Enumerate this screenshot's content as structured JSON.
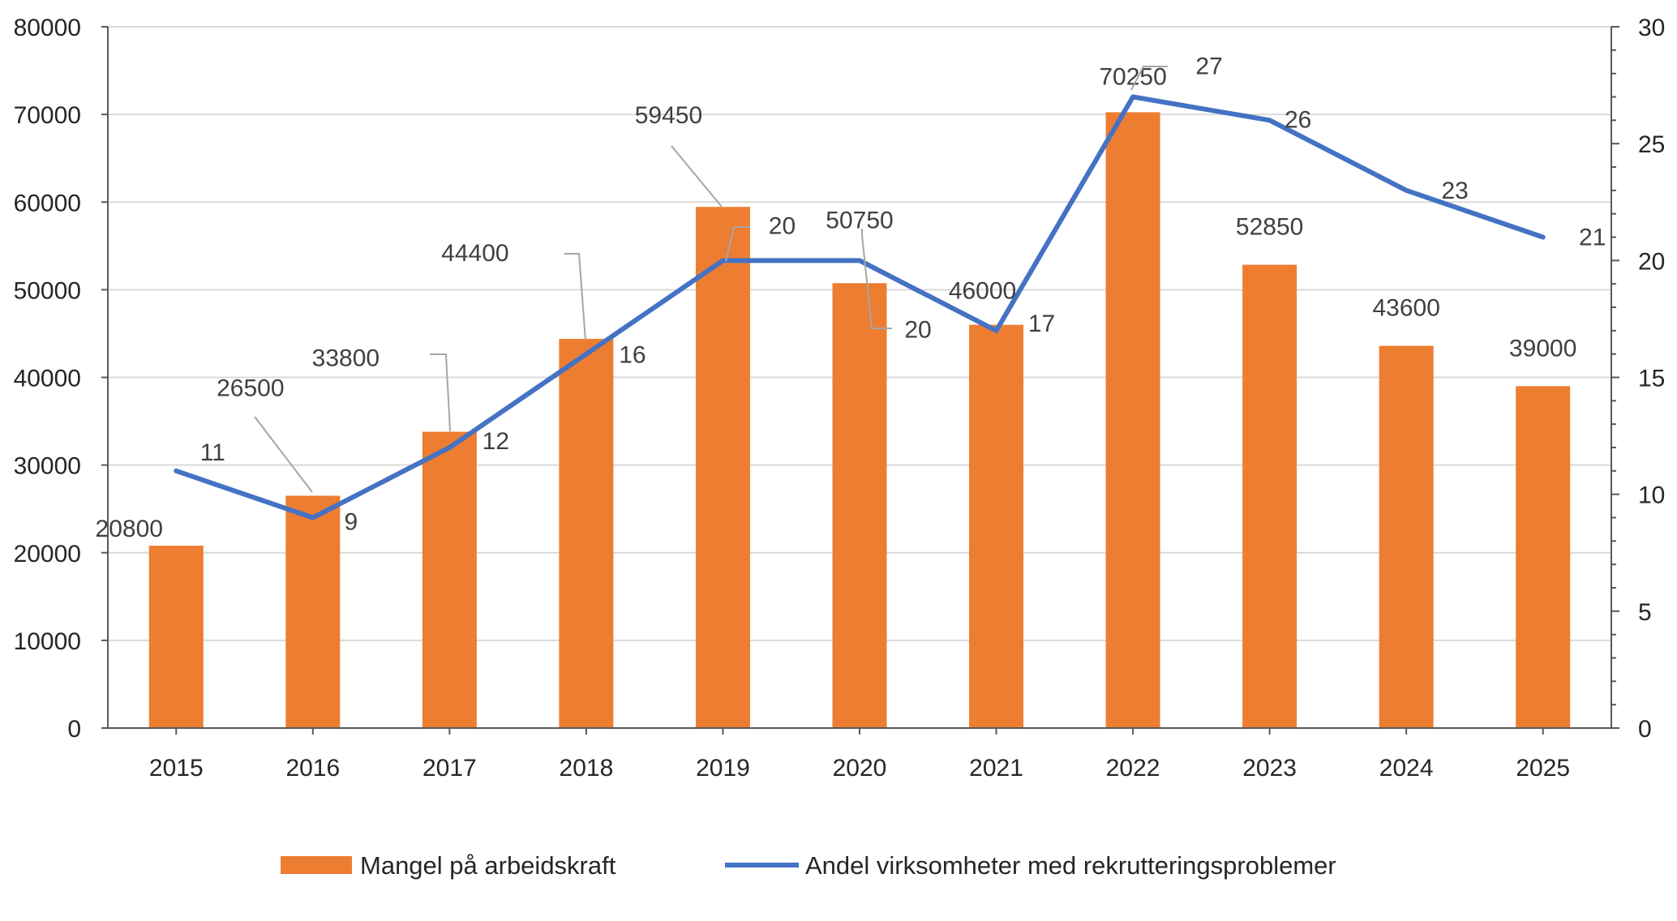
{
  "chart_data": {
    "type": "bar",
    "categories": [
      "2015",
      "2016",
      "2017",
      "2018",
      "2019",
      "2020",
      "2021",
      "2022",
      "2023",
      "2024",
      "2025"
    ],
    "series": [
      {
        "name": "Mangel på arbeidskraft",
        "type": "bar",
        "axis": "left",
        "color": "#ED7D31",
        "values": [
          20800,
          26500,
          33800,
          44400,
          59450,
          50750,
          46000,
          70250,
          52850,
          43600,
          39000
        ],
        "labels": [
          "20800",
          "26500",
          "33800",
          "44400",
          "59450",
          "50750",
          "46000",
          "70250",
          "52850",
          "43600",
          "39000"
        ]
      },
      {
        "name": "Andel virksomheter med rekrutteringsproblemer",
        "type": "line",
        "axis": "right",
        "color": "#4472C4",
        "values": [
          11,
          9,
          12,
          16,
          20,
          20,
          17,
          27,
          26,
          23,
          21
        ],
        "labels": [
          "11",
          "9",
          "12",
          "16",
          "20",
          "20",
          "17",
          "27",
          "26",
          "23",
          "21"
        ]
      }
    ],
    "ylim_left": [
      0,
      80000
    ],
    "ylim_right": [
      0,
      30
    ],
    "yticks_left": [
      "0",
      "10000",
      "20000",
      "30000",
      "40000",
      "50000",
      "60000",
      "70000",
      "80000"
    ],
    "yticks_right": [
      "0",
      "5",
      "10",
      "15",
      "20",
      "25",
      "30"
    ],
    "grid": true,
    "legend_position": "bottom"
  }
}
